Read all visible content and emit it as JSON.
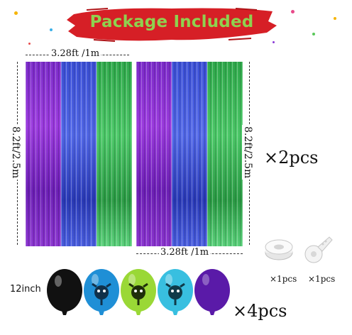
{
  "title": "Package Included",
  "curtain": {
    "width_label": "3.28ft /1m",
    "height_label": "8.2ft/2.5m",
    "quantity": "×2pcs",
    "colors": [
      "#7b2bc9",
      "#3b4fd6",
      "#2ea84a"
    ]
  },
  "accessories": {
    "ribbon_quantity": "×1pcs",
    "dot_strip_quantity": "×1pcs"
  },
  "balloons": {
    "size_label": "12inch",
    "quantity": "×4pcs",
    "colors": [
      "#111111",
      "#1f8fd6",
      "#9ad836",
      "#38bfe0",
      "#5a1aa8"
    ]
  },
  "colors": {
    "title_banner": "#d61f26",
    "title_text": "#8fd14f"
  }
}
